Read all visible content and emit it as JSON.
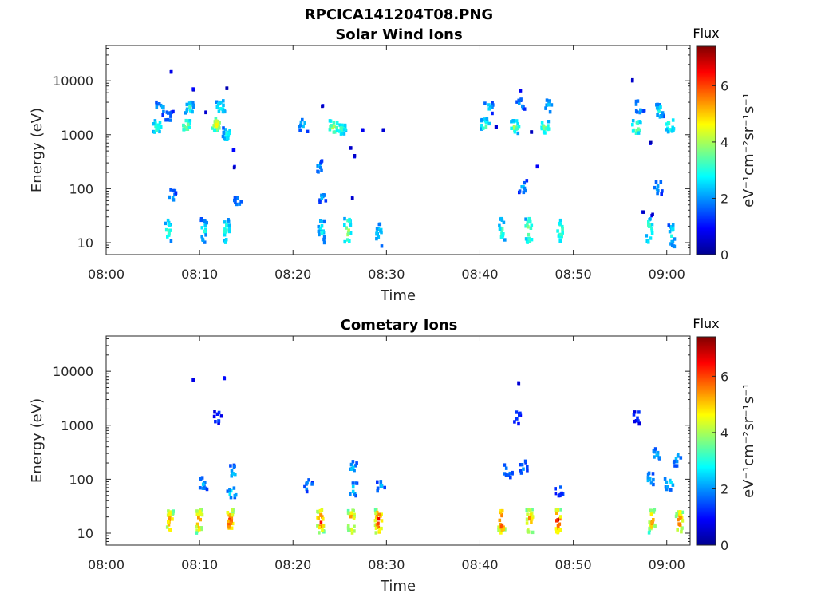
{
  "figure": {
    "title": "RPCICA141204T08.PNG"
  },
  "colormap": "jet",
  "chart_data": [
    {
      "type": "heatmap",
      "title": "Solar Wind Ions",
      "xlabel": "Time",
      "ylabel": "Energy (eV)",
      "x_ticks": [
        "08:00",
        "08:10",
        "08:20",
        "08:30",
        "08:40",
        "08:50",
        "09:00"
      ],
      "y_ticks": [
        "10",
        "100",
        "1000",
        "10000"
      ],
      "y_scale": "log",
      "ylim": [
        6,
        45000
      ],
      "colorbar": {
        "title": "Flux",
        "label": "eV⁻¹cm⁻²sr⁻¹s⁻¹",
        "ticks": [
          "0",
          "2",
          "4",
          "6"
        ],
        "range": [
          0,
          7.4
        ]
      },
      "blobs": [
        {
          "t": 5.3,
          "e": 1500,
          "v": 3.6
        },
        {
          "t": 5.6,
          "e": 3300,
          "v": 2.6
        },
        {
          "t": 6.8,
          "e": 16000,
          "v": 1.0
        },
        {
          "t": 6.6,
          "e": 2200,
          "v": 2.0
        },
        {
          "t": 8.4,
          "e": 1600,
          "v": 4.3
        },
        {
          "t": 8.8,
          "e": 3500,
          "v": 3.2
        },
        {
          "t": 9.2,
          "e": 7500,
          "v": 1.0
        },
        {
          "t": 10.5,
          "e": 2800,
          "v": 1.0
        },
        {
          "t": 11.7,
          "e": 1700,
          "v": 5.0
        },
        {
          "t": 12.1,
          "e": 3500,
          "v": 3.4
        },
        {
          "t": 12.8,
          "e": 1100,
          "v": 3.2
        },
        {
          "t": 12.8,
          "e": 8000,
          "v": 1.0
        },
        {
          "t": 13.5,
          "e": 550,
          "v": 1.0
        },
        {
          "t": 13.6,
          "e": 270,
          "v": 1.0
        },
        {
          "t": 21.0,
          "e": 1600,
          "v": 2.8
        },
        {
          "t": 22.6,
          "e": 280,
          "v": 2.3
        },
        {
          "t": 23.0,
          "e": 3700,
          "v": 1.0
        },
        {
          "t": 24.2,
          "e": 1500,
          "v": 4.4
        },
        {
          "t": 25.1,
          "e": 1400,
          "v": 3.6
        },
        {
          "t": 26.0,
          "e": 620,
          "v": 1.0
        },
        {
          "t": 26.4,
          "e": 430,
          "v": 1.0
        },
        {
          "t": 27.3,
          "e": 1300,
          "v": 1.0
        },
        {
          "t": 29.5,
          "e": 1300,
          "v": 1.0
        },
        {
          "t": 40.4,
          "e": 1600,
          "v": 3.6
        },
        {
          "t": 40.8,
          "e": 3500,
          "v": 2.5
        },
        {
          "t": 41.6,
          "e": 1500,
          "v": 1.0
        },
        {
          "t": 43.6,
          "e": 1500,
          "v": 4.0
        },
        {
          "t": 44.2,
          "e": 7000,
          "v": 1.0
        },
        {
          "t": 44.2,
          "e": 3800,
          "v": 2.2
        },
        {
          "t": 45.4,
          "e": 1200,
          "v": 1.0
        },
        {
          "t": 46.0,
          "e": 280,
          "v": 1.0
        },
        {
          "t": 46.8,
          "e": 1500,
          "v": 4.0
        },
        {
          "t": 47.1,
          "e": 3600,
          "v": 2.5
        },
        {
          "t": 56.2,
          "e": 11000,
          "v": 1.0
        },
        {
          "t": 56.6,
          "e": 1500,
          "v": 4.4
        },
        {
          "t": 57.0,
          "e": 3600,
          "v": 2.6
        },
        {
          "t": 58.1,
          "e": 750,
          "v": 1.0
        },
        {
          "t": 59.1,
          "e": 3000,
          "v": 3.0
        },
        {
          "t": 60.2,
          "e": 1600,
          "v": 3.8
        },
        {
          "t": 6.9,
          "e": 80,
          "v": 2.3
        },
        {
          "t": 14.0,
          "e": 57,
          "v": 2.3
        },
        {
          "t": 23.0,
          "e": 75,
          "v": 2.3
        },
        {
          "t": 26.2,
          "e": 72,
          "v": 1.0
        },
        {
          "t": 44.5,
          "e": 120,
          "v": 2.3
        },
        {
          "t": 57.3,
          "e": 40,
          "v": 1.0
        },
        {
          "t": 58.3,
          "e": 35,
          "v": 1.0
        },
        {
          "t": 59.0,
          "e": 110,
          "v": 2.3
        },
        {
          "t": 6.5,
          "e": 18,
          "v": 3.6
        },
        {
          "t": 10.3,
          "e": 18,
          "v": 3.0
        },
        {
          "t": 12.7,
          "e": 18,
          "v": 3.6
        },
        {
          "t": 22.9,
          "e": 17,
          "v": 3.0
        },
        {
          "t": 25.7,
          "e": 18,
          "v": 4.3
        },
        {
          "t": 29.1,
          "e": 15,
          "v": 3.0
        },
        {
          "t": 42.2,
          "e": 18,
          "v": 3.5
        },
        {
          "t": 45.1,
          "e": 18,
          "v": 4.3
        },
        {
          "t": 48.5,
          "e": 18,
          "v": 3.8
        },
        {
          "t": 58.0,
          "e": 18,
          "v": 3.8
        },
        {
          "t": 60.4,
          "e": 15,
          "v": 3.0
        }
      ]
    },
    {
      "type": "heatmap",
      "title": "Cometary Ions",
      "xlabel": "Time",
      "ylabel": "Energy (eV)",
      "x_ticks": [
        "08:00",
        "08:10",
        "08:20",
        "08:30",
        "08:40",
        "08:50",
        "09:00"
      ],
      "y_ticks": [
        "10",
        "100",
        "1000",
        "10000"
      ],
      "y_scale": "log",
      "ylim": [
        6,
        45000
      ],
      "colorbar": {
        "title": "Flux",
        "label": "eV⁻¹cm⁻²sr⁻¹s⁻¹",
        "ticks": [
          "0",
          "2",
          "4",
          "6"
        ],
        "range": [
          0,
          7.4
        ]
      },
      "blobs": [
        {
          "t": 9.2,
          "e": 7500,
          "v": 1.0
        },
        {
          "t": 12.5,
          "e": 8000,
          "v": 1.0
        },
        {
          "t": 11.8,
          "e": 1500,
          "v": 1.5
        },
        {
          "t": 44.0,
          "e": 6500,
          "v": 1.0
        },
        {
          "t": 43.8,
          "e": 1500,
          "v": 1.5
        },
        {
          "t": 56.7,
          "e": 1500,
          "v": 1.5
        },
        {
          "t": 13.5,
          "e": 150,
          "v": 2.6
        },
        {
          "t": 13.3,
          "e": 60,
          "v": 2.8
        },
        {
          "t": 10.2,
          "e": 90,
          "v": 2.3
        },
        {
          "t": 21.5,
          "e": 80,
          "v": 2.3
        },
        {
          "t": 26.3,
          "e": 180,
          "v": 2.5
        },
        {
          "t": 26.3,
          "e": 70,
          "v": 2.8
        },
        {
          "t": 29.3,
          "e": 80,
          "v": 2.4
        },
        {
          "t": 42.9,
          "e": 150,
          "v": 2.3
        },
        {
          "t": 44.5,
          "e": 180,
          "v": 2.3
        },
        {
          "t": 48.3,
          "e": 70,
          "v": 2.0
        },
        {
          "t": 58.0,
          "e": 110,
          "v": 2.6
        },
        {
          "t": 58.8,
          "e": 300,
          "v": 2.4
        },
        {
          "t": 60.1,
          "e": 90,
          "v": 2.8
        },
        {
          "t": 61.0,
          "e": 250,
          "v": 2.5
        },
        {
          "t": 6.7,
          "e": 18,
          "v": 6.0
        },
        {
          "t": 9.8,
          "e": 18,
          "v": 6.2
        },
        {
          "t": 13.1,
          "e": 18,
          "v": 6.6
        },
        {
          "t": 22.8,
          "e": 18,
          "v": 6.6
        },
        {
          "t": 26.1,
          "e": 18,
          "v": 6.4
        },
        {
          "t": 29.0,
          "e": 18,
          "v": 6.8
        },
        {
          "t": 42.2,
          "e": 18,
          "v": 6.8
        },
        {
          "t": 45.2,
          "e": 18,
          "v": 6.2
        },
        {
          "t": 48.2,
          "e": 18,
          "v": 6.9
        },
        {
          "t": 58.3,
          "e": 18,
          "v": 5.8
        },
        {
          "t": 61.2,
          "e": 18,
          "v": 6.2
        }
      ]
    }
  ]
}
